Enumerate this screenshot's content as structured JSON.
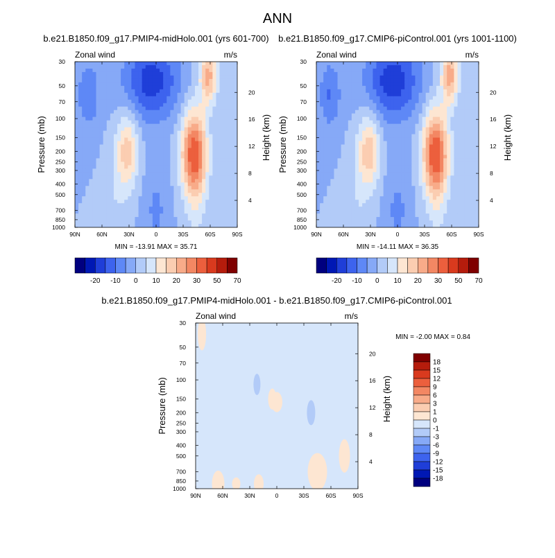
{
  "page_title": "ANN",
  "colors": {
    "scale": [
      "#00007f",
      "#0018b4",
      "#1f3ed8",
      "#3d63ee",
      "#5e88f6",
      "#86a9f7",
      "#b2cbf8",
      "#d6e6fb",
      "#fde6d2",
      "#fbcdb1",
      "#f8ab89",
      "#f38763",
      "#ec5f3d",
      "#d93a1e",
      "#b51c0c",
      "#7f0000"
    ]
  },
  "chart_data": [
    {
      "type": "heatmap",
      "title": "b.e21.B1850.f09_g17.PMIP4-midHolo.001 (yrs 601-700)",
      "variable": "Zonal wind",
      "units": "m/s",
      "ylabel": "Pressure (mb)",
      "ylabel_right": "Height (km)",
      "x_ticks": [
        "90N",
        "60N",
        "30N",
        "0",
        "30S",
        "60S",
        "90S"
      ],
      "x_range": [
        90,
        -90
      ],
      "y_ticks": [
        30,
        50,
        70,
        100,
        150,
        200,
        250,
        300,
        400,
        500,
        700,
        850,
        1000
      ],
      "y_range": [
        30,
        1000
      ],
      "y_scale": "log",
      "height_ticks": [
        4,
        8,
        12,
        16,
        20
      ],
      "min_label": "MIN = -13.91  MAX =  35.71",
      "min": -13.91,
      "max": 35.71,
      "colorbar": {
        "orientation": "horizontal",
        "levels": [
          -25,
          -20,
          -15,
          -10,
          -5,
          0,
          5,
          10,
          15,
          20,
          25,
          30,
          40,
          50,
          60,
          70
        ],
        "labels": [
          "-20",
          "-10",
          "0",
          "10",
          "20",
          "30",
          "50",
          "70"
        ]
      }
    },
    {
      "type": "heatmap",
      "title": "b.e21.B1850.f09_g17.CMIP6-piControl.001 (yrs 1001-1100)",
      "variable": "Zonal wind",
      "units": "m/s",
      "ylabel": "Pressure (mb)",
      "ylabel_right": "Height (km)",
      "x_ticks": [
        "90N",
        "60N",
        "30N",
        "0",
        "30S",
        "60S",
        "90S"
      ],
      "x_range": [
        90,
        -90
      ],
      "y_ticks": [
        30,
        50,
        70,
        100,
        150,
        200,
        250,
        300,
        400,
        500,
        700,
        850,
        1000
      ],
      "y_range": [
        30,
        1000
      ],
      "y_scale": "log",
      "height_ticks": [
        4,
        8,
        12,
        16,
        20
      ],
      "min_label": "MIN = -14.11  MAX =  36.35",
      "min": -14.11,
      "max": 36.35,
      "colorbar": {
        "orientation": "horizontal",
        "levels": [
          -25,
          -20,
          -15,
          -10,
          -5,
          0,
          5,
          10,
          15,
          20,
          25,
          30,
          40,
          50,
          60,
          70
        ],
        "labels": [
          "-20",
          "-10",
          "0",
          "10",
          "20",
          "30",
          "50",
          "70"
        ]
      }
    },
    {
      "type": "heatmap",
      "title": "b.e21.B1850.f09_g17.PMIP4-midHolo.001 - b.e21.B1850.f09_g17.CMIP6-piControl.001",
      "variable": "Zonal wind",
      "units": "m/s",
      "ylabel": "Pressure (mb)",
      "ylabel_right": "Height (km)",
      "x_ticks": [
        "90N",
        "60N",
        "30N",
        "0",
        "30S",
        "60S",
        "90S"
      ],
      "x_range": [
        90,
        -90
      ],
      "y_ticks": [
        30,
        50,
        70,
        100,
        150,
        200,
        250,
        300,
        400,
        500,
        700,
        850,
        1000
      ],
      "y_range": [
        30,
        1000
      ],
      "y_scale": "log",
      "height_ticks": [
        4,
        8,
        12,
        16,
        20
      ],
      "min_label": "MIN =  -2.00  MAX =   0.84",
      "min": -2.0,
      "max": 0.84,
      "colorbar": {
        "orientation": "vertical",
        "labels": [
          "18",
          "15",
          "12",
          "9",
          "6",
          "3",
          "1",
          "0",
          "-1",
          "-3",
          "-6",
          "-9",
          "-12",
          "-15",
          "-18"
        ]
      }
    }
  ]
}
